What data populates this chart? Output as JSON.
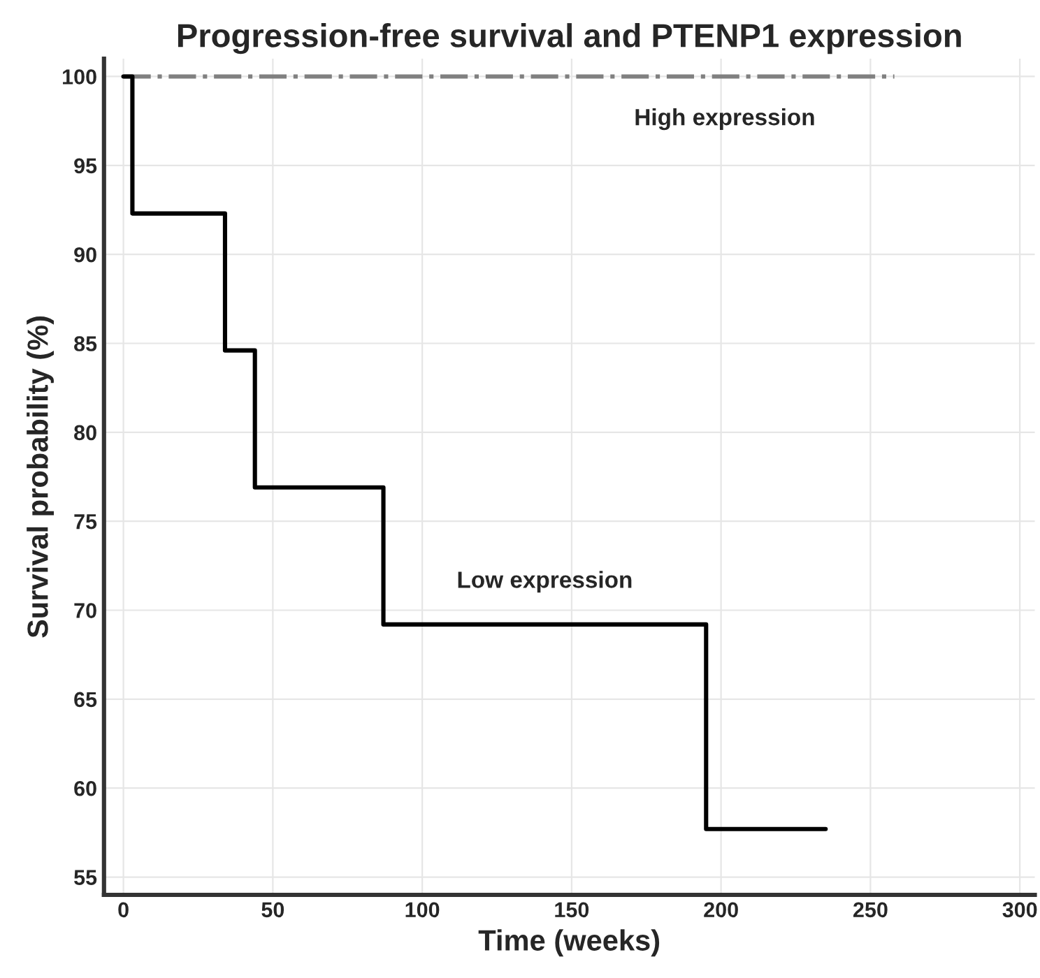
{
  "chart_data": {
    "type": "step",
    "title": "Progression-free survival and PTENP1 expression",
    "xlabel": "Time (weeks)",
    "ylabel": "Survival probability (%)",
    "series": [
      {
        "name": "High expression",
        "color": "#808080",
        "line_style": "dashdot",
        "x": [
          0,
          258
        ],
        "values": [
          100,
          100
        ]
      },
      {
        "name": "Low expression",
        "color": "#000000",
        "line_style": "solid",
        "x": [
          0,
          3,
          34,
          44,
          87,
          195,
          235
        ],
        "values": [
          100,
          92.3,
          84.6,
          76.9,
          69.2,
          57.7,
          57.7
        ]
      }
    ],
    "xlim": [
      -6.5,
      305
    ],
    "ylim": [
      54,
      101
    ],
    "xticks": [
      0,
      50,
      100,
      150,
      200,
      250,
      300
    ],
    "yticks": [
      55,
      60,
      65,
      70,
      75,
      80,
      85,
      90,
      95,
      100
    ],
    "grid": true
  }
}
